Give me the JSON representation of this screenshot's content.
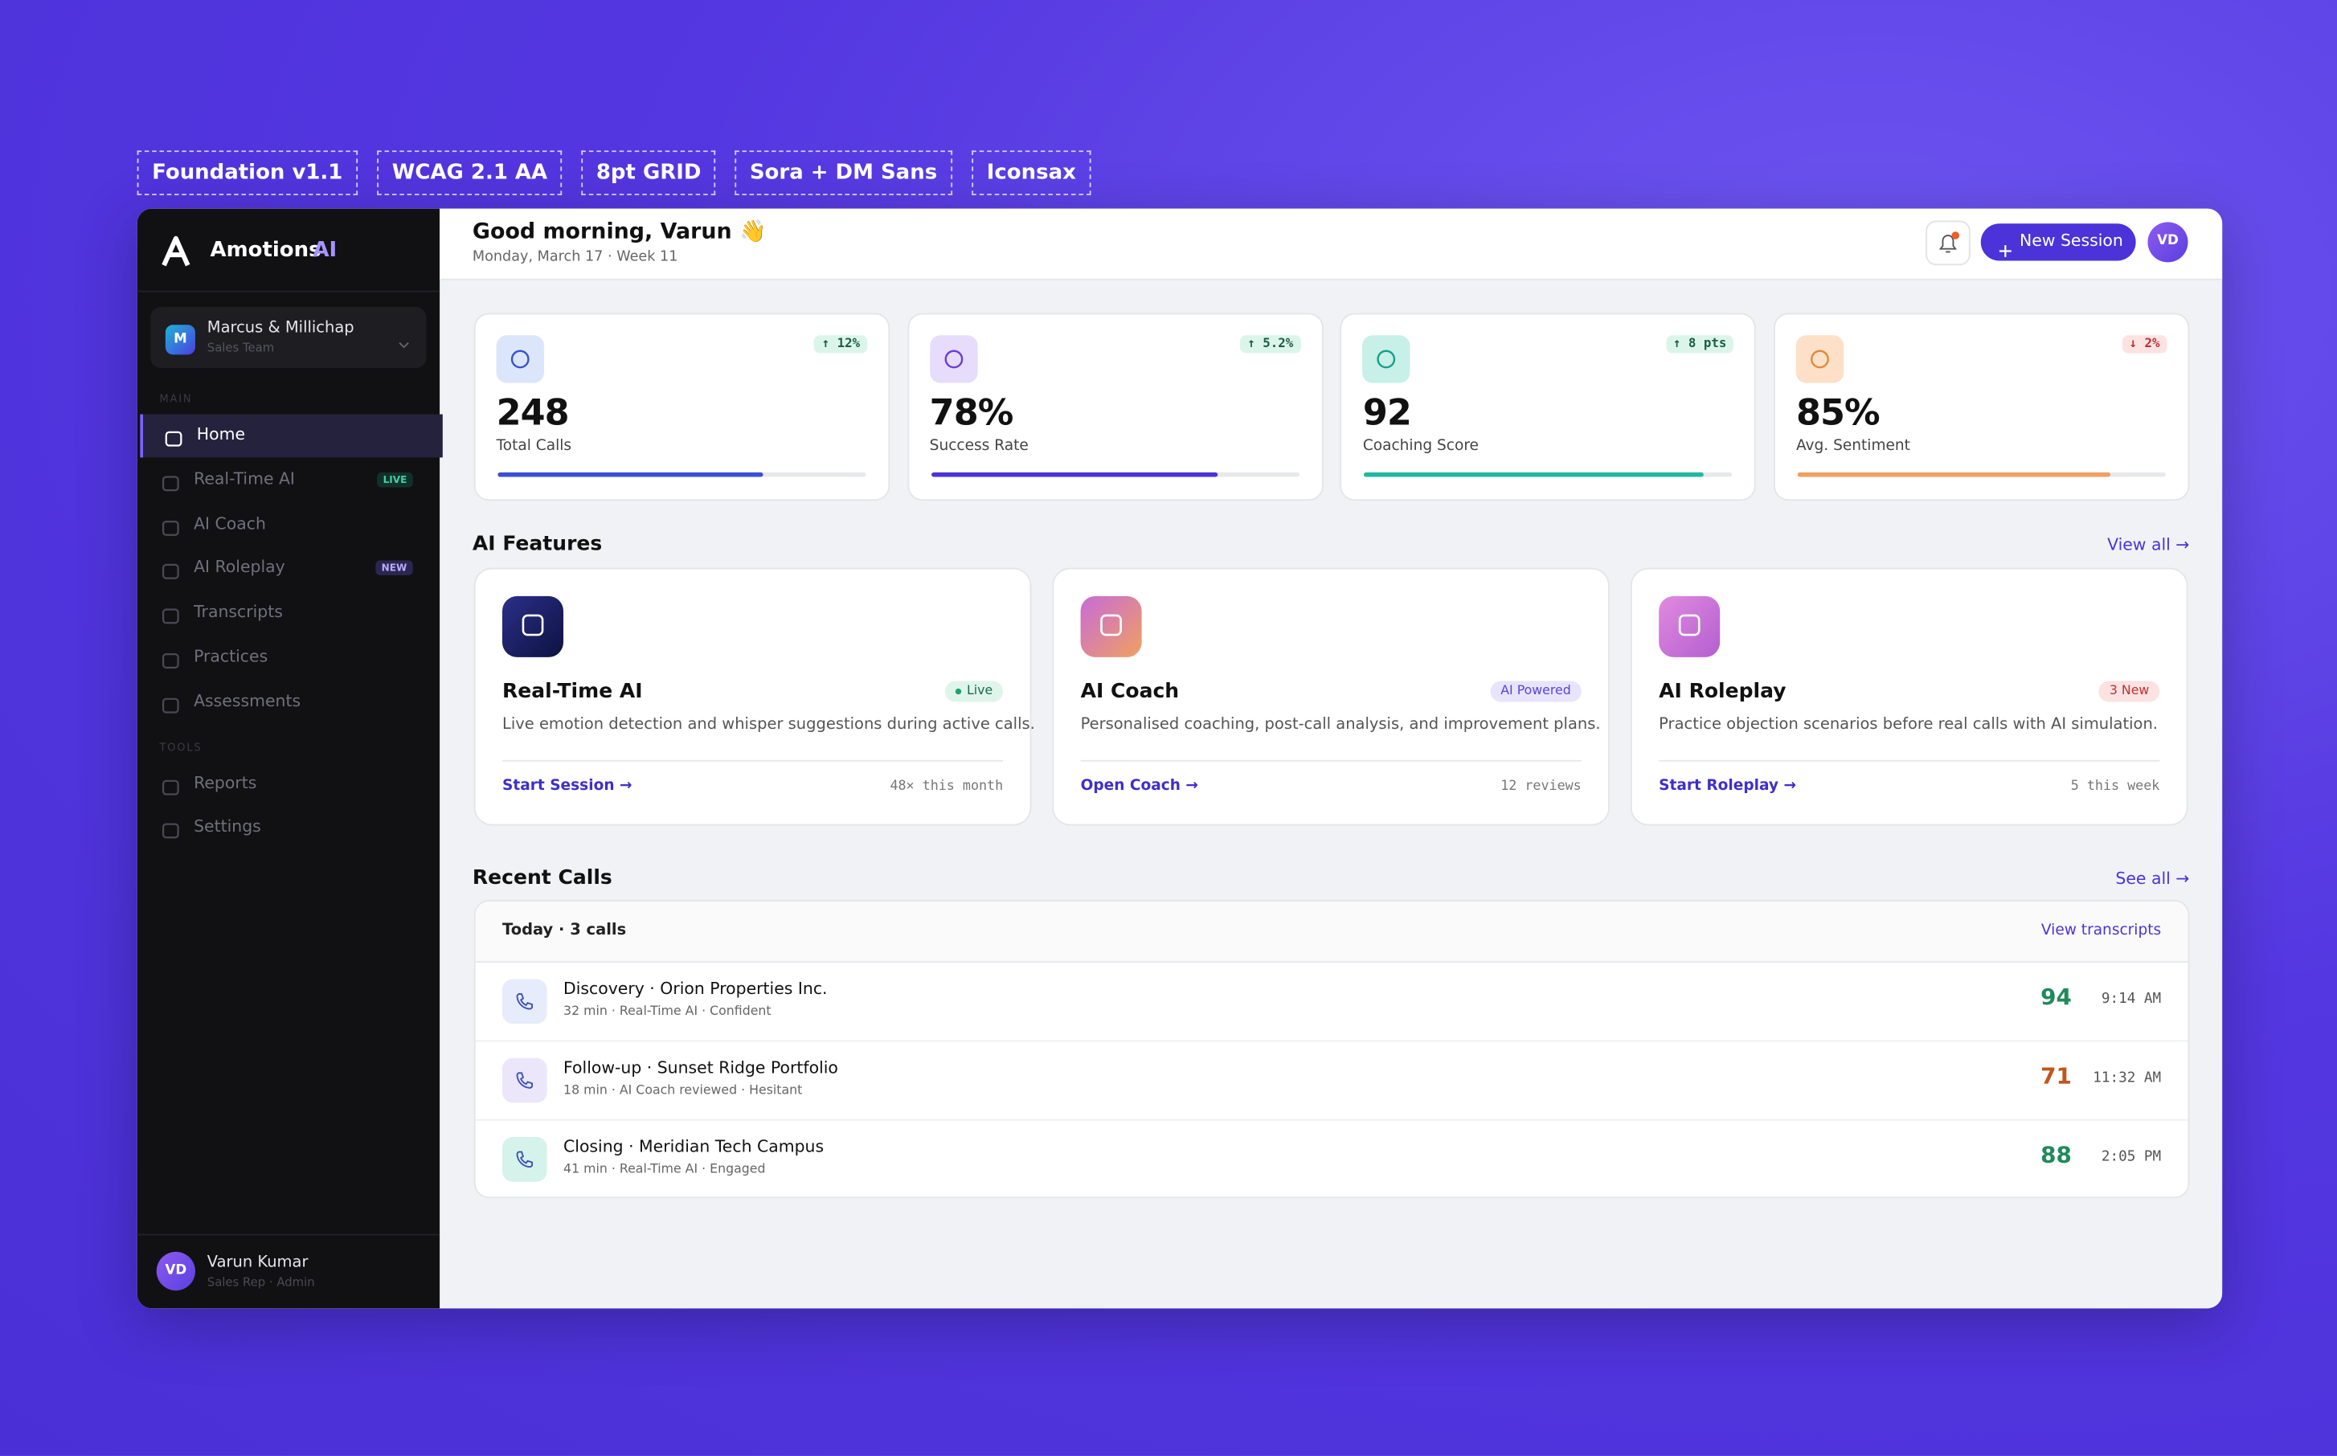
{
  "tags": [
    "Foundation v1.1",
    "WCAG 2.1 AA",
    "8pt GRID",
    "Sora + DM Sans",
    "Iconsax"
  ],
  "sidebar": {
    "brand": "Amotions",
    "brand_accent": "AI",
    "workspace": {
      "initial": "M",
      "name": "Marcus & Millichap",
      "team": "Sales Team"
    },
    "sections": [
      {
        "title": "MAIN",
        "items": [
          {
            "label": "Home"
          },
          {
            "label": "Real-Time AI",
            "badge": "LIVE"
          },
          {
            "label": "AI Coach"
          },
          {
            "label": "AI Roleplay",
            "badge": "NEW"
          },
          {
            "label": "Transcripts"
          },
          {
            "label": "Practices"
          },
          {
            "label": "Assessments"
          }
        ]
      },
      {
        "title": "TOOLS",
        "items": [
          {
            "label": "Reports"
          },
          {
            "label": "Settings"
          }
        ]
      }
    ],
    "user": {
      "initials": "VD",
      "name": "Varun Kumar",
      "role": "Sales Rep · Admin"
    }
  },
  "header": {
    "greeting": "Good morning, Varun 👋",
    "date": "Monday, March 17 · Week 11",
    "button": "New Session",
    "avatar": "VD"
  },
  "stats": [
    {
      "value": "248",
      "label": "Total Calls",
      "change": "↑ 12%",
      "progress": 72
    },
    {
      "value": "78%",
      "label": "Success Rate",
      "change": "↑ 5.2%",
      "progress": 78
    },
    {
      "value": "92",
      "label": "Coaching Score",
      "change": "↑ 8 pts",
      "progress": 92
    },
    {
      "value": "85%",
      "label": "Avg. Sentiment",
      "change": "↓ 2%",
      "progress": 85
    }
  ],
  "features": {
    "title": "AI Features",
    "link": "View all →",
    "cards": [
      {
        "title": "Real-Time AI",
        "badge": "Live",
        "description": "Live emotion detection and whisper suggestions during active calls.",
        "action": "Start Session →",
        "meta": "48× this month"
      },
      {
        "title": "AI Coach",
        "badge": "AI Powered",
        "description": "Personalised coaching, post-call analysis, and improvement plans.",
        "action": "Open Coach →",
        "meta": "12 reviews"
      },
      {
        "title": "AI Roleplay",
        "badge": "3 New",
        "description": "Practice objection scenarios before real calls with AI simulation.",
        "action": "Start Roleplay →",
        "meta": "5 this week"
      }
    ]
  },
  "recent_calls": {
    "title": "Recent Calls",
    "link": "See all →",
    "header": "Today · 3 calls",
    "header_link": "View transcripts",
    "rows": [
      {
        "title": "Discovery · Orion Properties Inc.",
        "meta": "32 min · Real-Time AI · Confident",
        "score": "94",
        "time": "9:14 AM"
      },
      {
        "title": "Follow-up · Sunset Ridge Portfolio",
        "meta": "18 min · AI Coach reviewed · Hesitant",
        "score": "71",
        "time": "11:32 AM"
      },
      {
        "title": "Closing · Meridian Tech Campus",
        "meta": "41 min · Real-Time AI · Engaged",
        "score": "88",
        "time": "2:05 PM"
      }
    ]
  }
}
